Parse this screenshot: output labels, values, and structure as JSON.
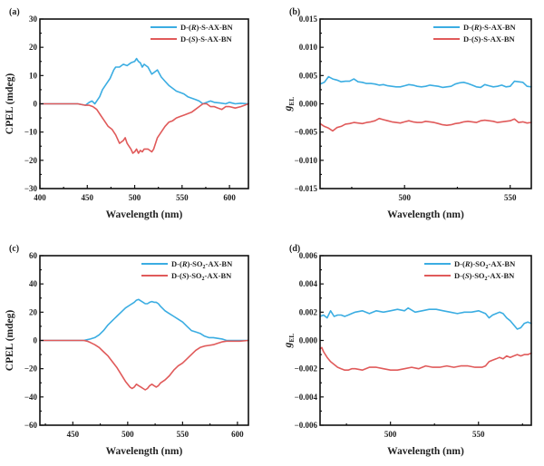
{
  "colors": {
    "blue": "#3BADE2",
    "red": "#E05A5A"
  },
  "chart_data": [
    {
      "id": "a",
      "type": "line",
      "panel_label": "(a)",
      "xlabel": "Wavelength (nm)",
      "ylabel": "CPEL (mdeg)",
      "ylabel_sub": "",
      "xlim": [
        400,
        620
      ],
      "ylim": [
        -30,
        30
      ],
      "xticks": [
        400,
        450,
        500,
        550,
        600
      ],
      "xtick_labels": [
        "400",
        "450",
        "500",
        "550",
        "600"
      ],
      "xminor": [
        425,
        475,
        525,
        575
      ],
      "yticks": [
        -30,
        -20,
        -10,
        0,
        10,
        20,
        30
      ],
      "ytick_labels": [
        "−30",
        "−20",
        "−10",
        "0",
        "10",
        "20",
        "30"
      ],
      "yminor": [
        -25,
        -15,
        -5,
        5,
        15,
        25
      ],
      "legend_position": "top-right",
      "series": [
        {
          "name": "D-(R)-S-AX-BN",
          "name_parts": [
            "D-(",
            "R",
            ")-S-AX-BN"
          ],
          "color": "blue",
          "x": [
            400,
            420,
            440,
            448,
            452,
            455,
            458,
            460,
            463,
            466,
            470,
            474,
            478,
            480,
            484,
            488,
            492,
            496,
            500,
            502,
            504,
            506,
            508,
            510,
            514,
            518,
            520,
            524,
            528,
            532,
            536,
            540,
            544,
            548,
            552,
            556,
            560,
            564,
            568,
            572,
            576,
            580,
            584,
            590,
            596,
            600,
            606,
            612,
            620
          ],
          "y": [
            0,
            0,
            0,
            -0.5,
            0.5,
            1,
            0,
            1,
            2.5,
            5,
            7,
            9,
            12,
            13,
            13,
            14,
            13.5,
            14.5,
            15,
            16,
            15,
            14.5,
            13,
            14,
            13,
            10.5,
            11,
            12,
            9.5,
            8,
            6.5,
            5.5,
            4.5,
            4,
            3.5,
            2.5,
            2,
            1.5,
            1,
            0,
            0.5,
            1,
            0.5,
            0.3,
            0,
            0.5,
            0,
            0.2,
            0
          ]
        },
        {
          "name": "D-(S)-S-AX-BN",
          "name_parts": [
            "D-(",
            "S",
            ")-S-AX-BN"
          ],
          "color": "red",
          "x": [
            400,
            410,
            420,
            430,
            440,
            448,
            452,
            456,
            460,
            464,
            468,
            472,
            476,
            480,
            484,
            488,
            490,
            492,
            494,
            496,
            498,
            500,
            502,
            504,
            506,
            508,
            510,
            514,
            518,
            520,
            524,
            528,
            532,
            536,
            540,
            544,
            548,
            552,
            556,
            560,
            564,
            568,
            572,
            576,
            580,
            584,
            588,
            592,
            596,
            600,
            606,
            612,
            620
          ],
          "y": [
            0,
            0,
            0,
            0,
            0,
            -0.5,
            -0.5,
            -1,
            -2,
            -4,
            -6,
            -8,
            -9,
            -11,
            -14,
            -13,
            -12,
            -14,
            -15,
            -16,
            -17.5,
            -17,
            -16,
            -17.5,
            -16.5,
            -17,
            -16,
            -16,
            -17,
            -16,
            -12,
            -10,
            -8,
            -6.5,
            -6,
            -5,
            -4.5,
            -4,
            -3.5,
            -3,
            -2,
            -1,
            0,
            0,
            -1,
            -1,
            -1.5,
            -2,
            -1,
            -1,
            -1.5,
            -1,
            0
          ]
        }
      ]
    },
    {
      "id": "b",
      "type": "line",
      "panel_label": "(b)",
      "xlabel": "Wavelength (nm)",
      "ylabel": "g",
      "ylabel_sub": "EL",
      "xlim": [
        460,
        560
      ],
      "ylim": [
        -0.015,
        0.015
      ],
      "xticks": [
        500,
        550
      ],
      "xtick_labels": [
        "500",
        "550"
      ],
      "xminor": [
        475,
        525
      ],
      "yticks": [
        -0.015,
        -0.01,
        -0.005,
        0,
        0.005,
        0.01,
        0.015
      ],
      "ytick_labels": [
        "−0.015",
        "−0.010",
        "−0.005",
        "0.000",
        "0.005",
        "0.010",
        "0.015"
      ],
      "yminor": [
        -0.0125,
        -0.0075,
        -0.0025,
        0.0025,
        0.0075,
        0.0125
      ],
      "legend_position": "top-right",
      "series": [
        {
          "name": "D-(R)-S-AX-BN",
          "name_parts": [
            "D-(",
            "R",
            ")-S-AX-BN"
          ],
          "color": "blue",
          "x": [
            460,
            462,
            464,
            466,
            468,
            470,
            472,
            474,
            476,
            478,
            480,
            482,
            484,
            486,
            488,
            490,
            492,
            494,
            496,
            498,
            500,
            502,
            504,
            506,
            508,
            510,
            512,
            514,
            516,
            518,
            520,
            522,
            524,
            526,
            528,
            530,
            532,
            534,
            536,
            538,
            540,
            542,
            544,
            546,
            548,
            550,
            552,
            554,
            556,
            558,
            560
          ],
          "y": [
            0.0035,
            0.0038,
            0.0048,
            0.0044,
            0.0042,
            0.0039,
            0.004,
            0.004,
            0.0044,
            0.0039,
            0.0038,
            0.0036,
            0.0036,
            0.0035,
            0.0033,
            0.0034,
            0.0032,
            0.0031,
            0.003,
            0.003,
            0.0032,
            0.0034,
            0.0033,
            0.0031,
            0.003,
            0.0031,
            0.0033,
            0.0032,
            0.0031,
            0.0029,
            0.003,
            0.0031,
            0.0035,
            0.0037,
            0.0038,
            0.0036,
            0.0033,
            0.003,
            0.0029,
            0.0034,
            0.0032,
            0.003,
            0.0031,
            0.0033,
            0.003,
            0.0031,
            0.004,
            0.0039,
            0.0038,
            0.0031,
            0.003
          ]
        },
        {
          "name": "D-(S)-S-AX-BN",
          "name_parts": [
            "D-(",
            "S",
            ")-S-AX-BN"
          ],
          "color": "red",
          "x": [
            460,
            462,
            464,
            466,
            468,
            470,
            472,
            474,
            476,
            478,
            480,
            482,
            484,
            486,
            488,
            490,
            492,
            494,
            496,
            498,
            500,
            502,
            504,
            506,
            508,
            510,
            512,
            514,
            516,
            518,
            520,
            522,
            524,
            526,
            528,
            530,
            532,
            534,
            536,
            538,
            540,
            542,
            544,
            546,
            548,
            550,
            552,
            554,
            556,
            558,
            560
          ],
          "y": [
            -0.0035,
            -0.004,
            -0.0043,
            -0.0048,
            -0.0042,
            -0.004,
            -0.0036,
            -0.0035,
            -0.0033,
            -0.0034,
            -0.0035,
            -0.0033,
            -0.0032,
            -0.003,
            -0.0026,
            -0.0028,
            -0.003,
            -0.0032,
            -0.0033,
            -0.0034,
            -0.0032,
            -0.003,
            -0.0032,
            -0.0033,
            -0.0033,
            -0.0031,
            -0.0032,
            -0.0033,
            -0.0035,
            -0.0037,
            -0.0038,
            -0.0037,
            -0.0035,
            -0.0034,
            -0.0032,
            -0.0031,
            -0.0032,
            -0.0033,
            -0.003,
            -0.0029,
            -0.003,
            -0.0031,
            -0.0033,
            -0.0032,
            -0.0031,
            -0.003,
            -0.0027,
            -0.0033,
            -0.0032,
            -0.0034,
            -0.0033
          ]
        }
      ]
    },
    {
      "id": "c",
      "type": "line",
      "panel_label": "(c)",
      "xlabel": "Wavelength (nm)",
      "ylabel": "CPEL (mdeg)",
      "ylabel_sub": "",
      "xlim": [
        420,
        610
      ],
      "ylim": [
        -60,
        60
      ],
      "xticks": [
        450,
        500,
        550,
        600
      ],
      "xtick_labels": [
        "450",
        "500",
        "550",
        "600"
      ],
      "xminor": [
        425,
        475,
        525,
        575
      ],
      "yticks": [
        -60,
        -40,
        -20,
        0,
        20,
        40,
        60
      ],
      "ytick_labels": [
        "−60",
        "−40",
        "−20",
        "0",
        "20",
        "40",
        "60"
      ],
      "yminor": [
        -50,
        -30,
        -10,
        10,
        30,
        50
      ],
      "legend_position": "top-right",
      "series": [
        {
          "name": "D-(R)-SO2-AX-BN",
          "name_parts": [
            "D-(",
            "R",
            ")-SO",
            "2",
            "-AX-BN"
          ],
          "color": "blue",
          "x": [
            420,
            440,
            460,
            463,
            466,
            470,
            474,
            478,
            482,
            486,
            490,
            494,
            498,
            502,
            506,
            508,
            510,
            512,
            514,
            516,
            518,
            520,
            522,
            524,
            526,
            528,
            530,
            534,
            538,
            542,
            546,
            550,
            554,
            558,
            562,
            566,
            570,
            574,
            578,
            582,
            586,
            590,
            596,
            602,
            610
          ],
          "y": [
            0,
            0,
            0,
            0.5,
            1,
            2,
            4,
            7,
            11,
            14,
            17,
            20,
            23,
            25,
            27,
            28.5,
            29,
            28,
            27,
            26,
            26,
            27,
            27.5,
            27,
            27,
            26,
            24,
            21,
            19,
            17,
            15,
            13,
            10,
            7,
            6,
            5,
            3,
            2,
            2,
            1.5,
            1,
            0,
            0,
            0,
            0
          ]
        },
        {
          "name": "D-(S)-SO2-AX-BN",
          "name_parts": [
            "D-(",
            "S",
            ")-SO",
            "2",
            "-AX-BN"
          ],
          "color": "red",
          "x": [
            420,
            440,
            460,
            463,
            466,
            470,
            474,
            478,
            482,
            486,
            490,
            494,
            498,
            502,
            504,
            506,
            508,
            510,
            512,
            514,
            516,
            518,
            520,
            522,
            524,
            526,
            528,
            530,
            534,
            538,
            542,
            546,
            550,
            554,
            558,
            562,
            566,
            570,
            574,
            578,
            582,
            586,
            590,
            596,
            602,
            610
          ],
          "y": [
            0,
            0,
            0,
            -0.5,
            -1.5,
            -3,
            -5,
            -8,
            -11,
            -15,
            -19,
            -24,
            -29,
            -33,
            -34,
            -33,
            -31,
            -32,
            -33,
            -34,
            -35,
            -34,
            -32,
            -31,
            -32,
            -33,
            -32,
            -30,
            -28,
            -25,
            -21,
            -18,
            -16,
            -13,
            -10,
            -7,
            -5,
            -4,
            -3.5,
            -3,
            -2,
            -1,
            -0.5,
            -0.5,
            -0.5,
            0
          ]
        }
      ]
    },
    {
      "id": "d",
      "type": "line",
      "panel_label": "(d)",
      "xlabel": "Wavelength (nm)",
      "ylabel": "g",
      "ylabel_sub": "EL",
      "xlim": [
        460,
        580
      ],
      "ylim": [
        -0.006,
        0.006
      ],
      "xticks": [
        500,
        550
      ],
      "xtick_labels": [
        "500",
        "550"
      ],
      "xminor": [
        475,
        525,
        575
      ],
      "yticks": [
        -0.006,
        -0.004,
        -0.002,
        0,
        0.002,
        0.004,
        0.006
      ],
      "ytick_labels": [
        "−0.006",
        "−0.004",
        "−0.002",
        "0.000",
        "0.002",
        "0.004",
        "0.006"
      ],
      "yminor": [
        -0.005,
        -0.003,
        -0.001,
        0.001,
        0.003,
        0.005
      ],
      "legend_position": "top-right",
      "series": [
        {
          "name": "D-(R)-SO2-AX-BN",
          "name_parts": [
            "D-(",
            "R",
            ")-SO",
            "2",
            "-AX-BN"
          ],
          "color": "blue",
          "x": [
            460,
            462,
            464,
            466,
            468,
            470,
            472,
            474,
            476,
            478,
            480,
            484,
            488,
            492,
            496,
            500,
            504,
            508,
            510,
            514,
            518,
            522,
            526,
            530,
            534,
            538,
            542,
            546,
            550,
            554,
            556,
            558,
            560,
            562,
            564,
            566,
            568,
            570,
            572,
            574,
            576,
            578,
            580
          ],
          "y": [
            0.0017,
            0.0018,
            0.0016,
            0.0021,
            0.0017,
            0.0018,
            0.0018,
            0.0017,
            0.0018,
            0.0019,
            0.002,
            0.0021,
            0.0019,
            0.0021,
            0.002,
            0.0021,
            0.0022,
            0.0021,
            0.0023,
            0.002,
            0.0021,
            0.0022,
            0.0022,
            0.0021,
            0.002,
            0.0019,
            0.002,
            0.002,
            0.0021,
            0.0019,
            0.0016,
            0.0018,
            0.0019,
            0.002,
            0.0019,
            0.0016,
            0.0014,
            0.0011,
            0.0008,
            0.0009,
            0.0012,
            0.0013,
            0.0012
          ]
        },
        {
          "name": "D-(S)-SO2-AX-BN",
          "name_parts": [
            "D-(",
            "S",
            ")-SO",
            "2",
            "-AX-BN"
          ],
          "color": "red",
          "x": [
            460,
            461,
            462,
            464,
            466,
            468,
            470,
            472,
            474,
            476,
            478,
            480,
            484,
            488,
            492,
            496,
            500,
            504,
            508,
            512,
            516,
            520,
            524,
            528,
            532,
            536,
            540,
            544,
            548,
            552,
            554,
            556,
            558,
            560,
            562,
            564,
            566,
            568,
            570,
            572,
            574,
            576,
            578,
            580
          ],
          "y": [
            -0.0006,
            -0.0005,
            -0.0008,
            -0.0012,
            -0.0015,
            -0.0017,
            -0.0019,
            -0.002,
            -0.0021,
            -0.0021,
            -0.002,
            -0.002,
            -0.0021,
            -0.0019,
            -0.0019,
            -0.002,
            -0.0021,
            -0.0021,
            -0.002,
            -0.0019,
            -0.002,
            -0.0018,
            -0.0019,
            -0.0019,
            -0.0018,
            -0.0019,
            -0.0018,
            -0.0018,
            -0.0019,
            -0.0019,
            -0.0018,
            -0.0015,
            -0.0014,
            -0.0013,
            -0.0012,
            -0.0013,
            -0.0011,
            -0.0012,
            -0.0011,
            -0.001,
            -0.0011,
            -0.001,
            -0.001,
            -0.0009
          ]
        }
      ]
    }
  ]
}
